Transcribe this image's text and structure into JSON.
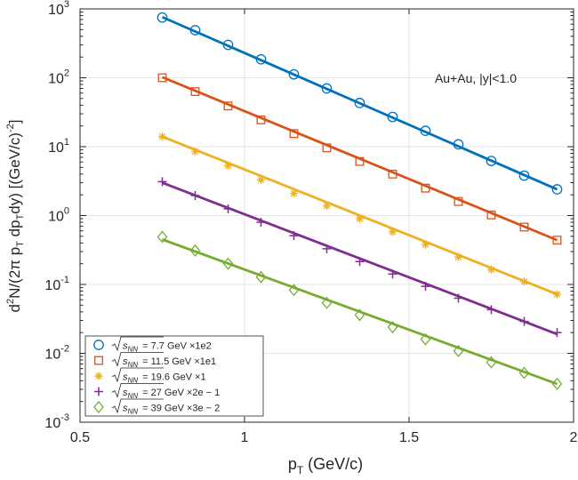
{
  "chart_data": {
    "type": "scatter",
    "xlabel": "p_T (GeV/c)",
    "ylabel": "d^2N/(2π p_T dp_T dy) [(GeV/c)^-2]",
    "annotation": "Au+Au, |y|<1.0",
    "xlim": [
      0.5,
      2.0
    ],
    "ylim": [
      0.001,
      1000
    ],
    "yscale": "log",
    "grid": true,
    "legend_position": "bottom-left",
    "x_ticks": [
      "0.5",
      "1",
      "1.5",
      "2"
    ],
    "y_ticks": [
      {
        "base": "10",
        "exp": "-3"
      },
      {
        "base": "10",
        "exp": "-2"
      },
      {
        "base": "10",
        "exp": "-1"
      },
      {
        "base": "10",
        "exp": "0"
      },
      {
        "base": "10",
        "exp": "1"
      },
      {
        "base": "10",
        "exp": "2"
      },
      {
        "base": "10",
        "exp": "3"
      }
    ],
    "x": [
      0.75,
      0.85,
      0.95,
      1.05,
      1.15,
      1.25,
      1.35,
      1.45,
      1.55,
      1.65,
      1.75,
      1.85,
      1.95
    ],
    "series": [
      {
        "legend": "= 7.7 GeV ×1e2",
        "marker": "circle",
        "color": "#0072bd",
        "values": [
          750,
          490,
          300,
          185,
          112,
          70,
          43,
          27,
          17,
          10.8,
          6.2,
          3.8,
          2.4
        ],
        "fit": [
          760,
          2.4
        ]
      },
      {
        "legend": "= 11.5 GeV ×1e1",
        "marker": "square",
        "color": "#d95319",
        "values": [
          100,
          63,
          39,
          24.5,
          15.5,
          9.6,
          6.1,
          4.0,
          2.5,
          1.6,
          1.02,
          0.68,
          0.44
        ],
        "fit": [
          102,
          0.44
        ]
      },
      {
        "legend": "= 19.6 GeV ×1",
        "marker": "asterisk",
        "color": "#edb120",
        "values": [
          14,
          8.5,
          5.3,
          3.3,
          2.1,
          1.38,
          0.9,
          0.58,
          0.38,
          0.25,
          0.165,
          0.11,
          0.072
        ],
        "fit": [
          14,
          0.072
        ]
      },
      {
        "legend": "= 27 GeV ×2e − 1",
        "marker": "plus",
        "color": "#7e2f8e",
        "values": [
          3.1,
          1.95,
          1.25,
          0.8,
          0.51,
          0.33,
          0.215,
          0.142,
          0.094,
          0.063,
          0.043,
          0.029,
          0.02
        ],
        "fit": [
          3.0,
          0.019
        ]
      },
      {
        "legend": "= 39 GeV ×3e − 2",
        "marker": "diamond",
        "color": "#77ac30",
        "values": [
          0.49,
          0.31,
          0.2,
          0.128,
          0.083,
          0.054,
          0.036,
          0.024,
          0.016,
          0.0108,
          0.0074,
          0.0052,
          0.0036
        ],
        "fit": [
          0.45,
          0.0036
        ]
      }
    ],
    "legend_symbol": "√s_NN"
  }
}
